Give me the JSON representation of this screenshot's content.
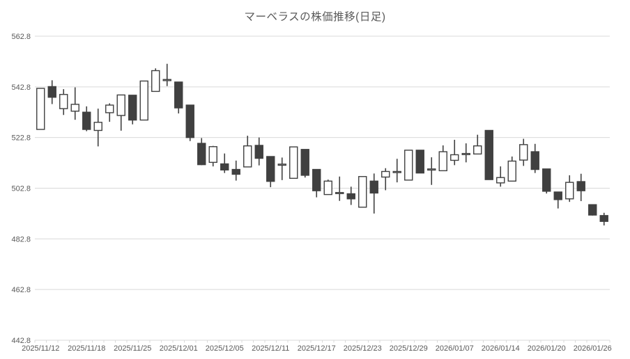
{
  "chart": {
    "title": "マーベラスの株価推移(日足)",
    "colors": {
      "up_fill": "#ffffff",
      "down_fill": "#404040",
      "candle_stroke": "#404040",
      "wick": "#404040",
      "gridline": "#d9d9d9",
      "axis_line": "#d9d9d9",
      "tick_text": "#595959",
      "title_text": "#595959",
      "background": "#ffffff"
    },
    "y_axis": {
      "min": 442.8,
      "max": 562.8,
      "step": 20,
      "tick_labels": [
        "562.8",
        "542.8",
        "522.8",
        "502.8",
        "482.8",
        "462.8",
        "442.8"
      ]
    },
    "x_axis": {
      "label_every_n_candles": 4,
      "tick_labels": [
        "2025/11/12",
        "2025/11/18",
        "2025/11/25",
        "2025/12/01",
        "2025/12/05",
        "2025/12/11",
        "2025/12/17",
        "2025/12/23",
        "2025/12/29",
        "2026/01/07",
        "2026/01/14",
        "2026/01/20",
        "2026/01/26"
      ]
    }
  },
  "chart_data": {
    "type": "candlestick",
    "title": "マーベラスの株価推移(日足)",
    "ylim": [
      442.8,
      562.8
    ],
    "grid": "horizontal",
    "legend": "none",
    "candles": [
      {
        "date": "2025/11/12",
        "open": 526.0,
        "high": 542.2,
        "low": 526.0,
        "close": 542.2
      },
      {
        "date": "2025/11/13",
        "open": 542.9,
        "high": 545.4,
        "low": 536.0,
        "close": 538.7
      },
      {
        "date": "2025/11/14",
        "open": 534.2,
        "high": 541.9,
        "low": 531.7,
        "close": 539.8
      },
      {
        "date": "2025/11/17",
        "open": 533.2,
        "high": 542.6,
        "low": 529.8,
        "close": 535.9
      },
      {
        "date": "2025/11/18",
        "open": 532.8,
        "high": 535.1,
        "low": 525.3,
        "close": 526.0
      },
      {
        "date": "2025/11/19",
        "open": 525.6,
        "high": 534.2,
        "low": 519.3,
        "close": 528.8
      },
      {
        "date": "2025/11/20",
        "open": 532.6,
        "high": 536.3,
        "low": 529.0,
        "close": 535.6
      },
      {
        "date": "2025/11/21",
        "open": 531.5,
        "high": 539.6,
        "low": 525.5,
        "close": 539.6
      },
      {
        "date": "2025/11/25",
        "open": 539.5,
        "high": 539.5,
        "low": 528.0,
        "close": 529.7
      },
      {
        "date": "2025/11/26",
        "open": 529.7,
        "high": 545.1,
        "low": 529.7,
        "close": 545.1
      },
      {
        "date": "2025/11/27",
        "open": 541.0,
        "high": 550.1,
        "low": 541.0,
        "close": 549.2
      },
      {
        "date": "2025/11/28",
        "open": 545.3,
        "high": 551.9,
        "low": 543.1,
        "close": 545.7
      },
      {
        "date": "2025/12/01",
        "open": 544.7,
        "high": 544.7,
        "low": 532.3,
        "close": 534.5
      },
      {
        "date": "2025/12/02",
        "open": 535.6,
        "high": 535.6,
        "low": 521.4,
        "close": 522.8
      },
      {
        "date": "2025/12/03",
        "open": 520.5,
        "high": 522.6,
        "low": 511.9,
        "close": 512.1
      },
      {
        "date": "2025/12/04",
        "open": 513.0,
        "high": 519.5,
        "low": 511.4,
        "close": 519.2
      },
      {
        "date": "2025/12/05",
        "open": 512.4,
        "high": 516.5,
        "low": 508.8,
        "close": 510.0
      },
      {
        "date": "2025/12/08",
        "open": 510.2,
        "high": 513.7,
        "low": 505.8,
        "close": 508.3
      },
      {
        "date": "2025/12/09",
        "open": 511.2,
        "high": 523.5,
        "low": 511.2,
        "close": 519.5
      },
      {
        "date": "2025/12/10",
        "open": 519.7,
        "high": 522.8,
        "low": 511.8,
        "close": 514.6
      },
      {
        "date": "2025/12/11",
        "open": 515.3,
        "high": 515.3,
        "low": 503.2,
        "close": 505.5
      },
      {
        "date": "2025/12/12",
        "open": 511.9,
        "high": 514.9,
        "low": 506.0,
        "close": 512.3
      },
      {
        "date": "2025/12/15",
        "open": 506.7,
        "high": 519.1,
        "low": 506.7,
        "close": 519.1
      },
      {
        "date": "2025/12/16",
        "open": 518.1,
        "high": 518.1,
        "low": 507.0,
        "close": 507.9
      },
      {
        "date": "2025/12/17",
        "open": 510.2,
        "high": 510.2,
        "low": 499.2,
        "close": 501.8
      },
      {
        "date": "2025/12/18",
        "open": 500.3,
        "high": 506.2,
        "low": 500.3,
        "close": 505.6
      },
      {
        "date": "2025/12/19",
        "open": 500.7,
        "high": 507.4,
        "low": 497.8,
        "close": 501.1
      },
      {
        "date": "2025/12/22",
        "open": 500.6,
        "high": 503.4,
        "low": 496.2,
        "close": 498.6
      },
      {
        "date": "2025/12/23",
        "open": 495.3,
        "high": 507.4,
        "low": 495.3,
        "close": 507.4
      },
      {
        "date": "2025/12/24",
        "open": 505.6,
        "high": 508.6,
        "low": 492.8,
        "close": 500.9
      },
      {
        "date": "2025/12/25",
        "open": 507.2,
        "high": 510.7,
        "low": 502.0,
        "close": 509.4
      },
      {
        "date": "2025/12/26",
        "open": 509.0,
        "high": 514.4,
        "low": 505.1,
        "close": 509.4
      },
      {
        "date": "2025/12/29",
        "open": 506.0,
        "high": 517.8,
        "low": 506.0,
        "close": 517.8
      },
      {
        "date": "2025/12/30",
        "open": 517.8,
        "high": 517.8,
        "low": 508.8,
        "close": 508.8
      },
      {
        "date": "2026/01/05",
        "open": 510.0,
        "high": 515.0,
        "low": 504.1,
        "close": 510.4
      },
      {
        "date": "2026/01/06",
        "open": 509.7,
        "high": 519.7,
        "low": 509.7,
        "close": 517.2
      },
      {
        "date": "2026/01/07",
        "open": 513.8,
        "high": 521.9,
        "low": 511.9,
        "close": 516.0
      },
      {
        "date": "2026/01/08",
        "open": 516.1,
        "high": 520.5,
        "low": 513.0,
        "close": 516.5
      },
      {
        "date": "2026/01/09",
        "open": 516.3,
        "high": 523.9,
        "low": 516.3,
        "close": 519.5
      },
      {
        "date": "2026/01/13",
        "open": 525.6,
        "high": 525.6,
        "low": 506.2,
        "close": 506.2
      },
      {
        "date": "2026/01/14",
        "open": 504.9,
        "high": 511.4,
        "low": 503.4,
        "close": 507.0
      },
      {
        "date": "2026/01/15",
        "open": 505.6,
        "high": 515.3,
        "low": 505.6,
        "close": 513.5
      },
      {
        "date": "2026/01/16",
        "open": 513.9,
        "high": 522.3,
        "low": 511.6,
        "close": 520.0
      },
      {
        "date": "2026/01/19",
        "open": 517.2,
        "high": 520.3,
        "low": 508.8,
        "close": 510.2
      },
      {
        "date": "2026/01/20",
        "open": 510.4,
        "high": 510.4,
        "low": 500.7,
        "close": 501.6
      },
      {
        "date": "2026/01/21",
        "open": 501.3,
        "high": 501.3,
        "low": 494.8,
        "close": 498.3
      },
      {
        "date": "2026/01/22",
        "open": 498.6,
        "high": 507.9,
        "low": 497.4,
        "close": 505.1
      },
      {
        "date": "2026/01/23",
        "open": 505.4,
        "high": 508.5,
        "low": 497.7,
        "close": 501.8
      },
      {
        "date": "2026/01/26",
        "open": 496.3,
        "high": 496.3,
        "low": 492.0,
        "close": 492.2
      },
      {
        "date": "2026/01/27",
        "open": 492.0,
        "high": 493.1,
        "low": 488.1,
        "close": 489.7
      }
    ]
  }
}
